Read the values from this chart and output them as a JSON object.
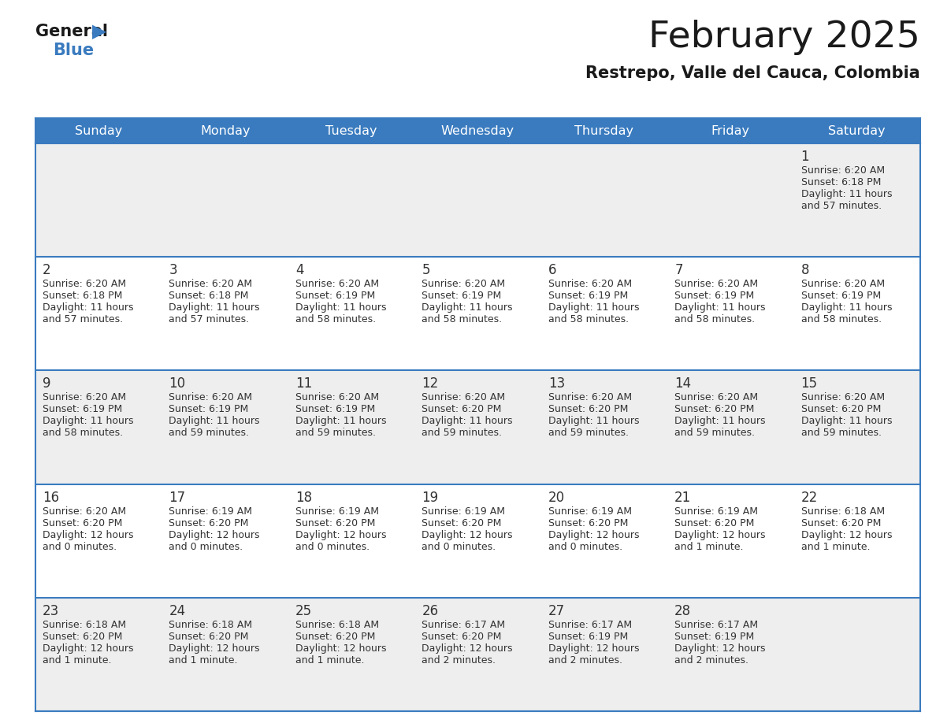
{
  "title": "February 2025",
  "subtitle": "Restrepo, Valle del Cauca, Colombia",
  "header_color": "#3a7bbf",
  "header_text_color": "#ffffff",
  "day_names": [
    "Sunday",
    "Monday",
    "Tuesday",
    "Wednesday",
    "Thursday",
    "Friday",
    "Saturday"
  ],
  "cell_bg_even": "#eeeeee",
  "cell_bg_odd": "#ffffff",
  "border_color": "#3a7bbf",
  "number_color": "#333333",
  "text_color": "#333333",
  "days": [
    {
      "day": 1,
      "col": 6,
      "row": 0,
      "sunrise": "6:20 AM",
      "sunset": "6:18 PM",
      "daylight_h": "11 hours",
      "daylight_m": "57 minutes."
    },
    {
      "day": 2,
      "col": 0,
      "row": 1,
      "sunrise": "6:20 AM",
      "sunset": "6:18 PM",
      "daylight_h": "11 hours",
      "daylight_m": "57 minutes."
    },
    {
      "day": 3,
      "col": 1,
      "row": 1,
      "sunrise": "6:20 AM",
      "sunset": "6:18 PM",
      "daylight_h": "11 hours",
      "daylight_m": "57 minutes."
    },
    {
      "day": 4,
      "col": 2,
      "row": 1,
      "sunrise": "6:20 AM",
      "sunset": "6:19 PM",
      "daylight_h": "11 hours",
      "daylight_m": "58 minutes."
    },
    {
      "day": 5,
      "col": 3,
      "row": 1,
      "sunrise": "6:20 AM",
      "sunset": "6:19 PM",
      "daylight_h": "11 hours",
      "daylight_m": "58 minutes."
    },
    {
      "day": 6,
      "col": 4,
      "row": 1,
      "sunrise": "6:20 AM",
      "sunset": "6:19 PM",
      "daylight_h": "11 hours",
      "daylight_m": "58 minutes."
    },
    {
      "day": 7,
      "col": 5,
      "row": 1,
      "sunrise": "6:20 AM",
      "sunset": "6:19 PM",
      "daylight_h": "11 hours",
      "daylight_m": "58 minutes."
    },
    {
      "day": 8,
      "col": 6,
      "row": 1,
      "sunrise": "6:20 AM",
      "sunset": "6:19 PM",
      "daylight_h": "11 hours",
      "daylight_m": "58 minutes."
    },
    {
      "day": 9,
      "col": 0,
      "row": 2,
      "sunrise": "6:20 AM",
      "sunset": "6:19 PM",
      "daylight_h": "11 hours",
      "daylight_m": "58 minutes."
    },
    {
      "day": 10,
      "col": 1,
      "row": 2,
      "sunrise": "6:20 AM",
      "sunset": "6:19 PM",
      "daylight_h": "11 hours",
      "daylight_m": "59 minutes."
    },
    {
      "day": 11,
      "col": 2,
      "row": 2,
      "sunrise": "6:20 AM",
      "sunset": "6:19 PM",
      "daylight_h": "11 hours",
      "daylight_m": "59 minutes."
    },
    {
      "day": 12,
      "col": 3,
      "row": 2,
      "sunrise": "6:20 AM",
      "sunset": "6:20 PM",
      "daylight_h": "11 hours",
      "daylight_m": "59 minutes."
    },
    {
      "day": 13,
      "col": 4,
      "row": 2,
      "sunrise": "6:20 AM",
      "sunset": "6:20 PM",
      "daylight_h": "11 hours",
      "daylight_m": "59 minutes."
    },
    {
      "day": 14,
      "col": 5,
      "row": 2,
      "sunrise": "6:20 AM",
      "sunset": "6:20 PM",
      "daylight_h": "11 hours",
      "daylight_m": "59 minutes."
    },
    {
      "day": 15,
      "col": 6,
      "row": 2,
      "sunrise": "6:20 AM",
      "sunset": "6:20 PM",
      "daylight_h": "11 hours",
      "daylight_m": "59 minutes."
    },
    {
      "day": 16,
      "col": 0,
      "row": 3,
      "sunrise": "6:20 AM",
      "sunset": "6:20 PM",
      "daylight_h": "12 hours",
      "daylight_m": "0 minutes."
    },
    {
      "day": 17,
      "col": 1,
      "row": 3,
      "sunrise": "6:19 AM",
      "sunset": "6:20 PM",
      "daylight_h": "12 hours",
      "daylight_m": "0 minutes."
    },
    {
      "day": 18,
      "col": 2,
      "row": 3,
      "sunrise": "6:19 AM",
      "sunset": "6:20 PM",
      "daylight_h": "12 hours",
      "daylight_m": "0 minutes."
    },
    {
      "day": 19,
      "col": 3,
      "row": 3,
      "sunrise": "6:19 AM",
      "sunset": "6:20 PM",
      "daylight_h": "12 hours",
      "daylight_m": "0 minutes."
    },
    {
      "day": 20,
      "col": 4,
      "row": 3,
      "sunrise": "6:19 AM",
      "sunset": "6:20 PM",
      "daylight_h": "12 hours",
      "daylight_m": "0 minutes."
    },
    {
      "day": 21,
      "col": 5,
      "row": 3,
      "sunrise": "6:19 AM",
      "sunset": "6:20 PM",
      "daylight_h": "12 hours",
      "daylight_m": "1 minute."
    },
    {
      "day": 22,
      "col": 6,
      "row": 3,
      "sunrise": "6:18 AM",
      "sunset": "6:20 PM",
      "daylight_h": "12 hours",
      "daylight_m": "1 minute."
    },
    {
      "day": 23,
      "col": 0,
      "row": 4,
      "sunrise": "6:18 AM",
      "sunset": "6:20 PM",
      "daylight_h": "12 hours",
      "daylight_m": "1 minute."
    },
    {
      "day": 24,
      "col": 1,
      "row": 4,
      "sunrise": "6:18 AM",
      "sunset": "6:20 PM",
      "daylight_h": "12 hours",
      "daylight_m": "1 minute."
    },
    {
      "day": 25,
      "col": 2,
      "row": 4,
      "sunrise": "6:18 AM",
      "sunset": "6:20 PM",
      "daylight_h": "12 hours",
      "daylight_m": "1 minute."
    },
    {
      "day": 26,
      "col": 3,
      "row": 4,
      "sunrise": "6:17 AM",
      "sunset": "6:20 PM",
      "daylight_h": "12 hours",
      "daylight_m": "2 minutes."
    },
    {
      "day": 27,
      "col": 4,
      "row": 4,
      "sunrise": "6:17 AM",
      "sunset": "6:19 PM",
      "daylight_h": "12 hours",
      "daylight_m": "2 minutes."
    },
    {
      "day": 28,
      "col": 5,
      "row": 4,
      "sunrise": "6:17 AM",
      "sunset": "6:19 PM",
      "daylight_h": "12 hours",
      "daylight_m": "2 minutes."
    }
  ]
}
